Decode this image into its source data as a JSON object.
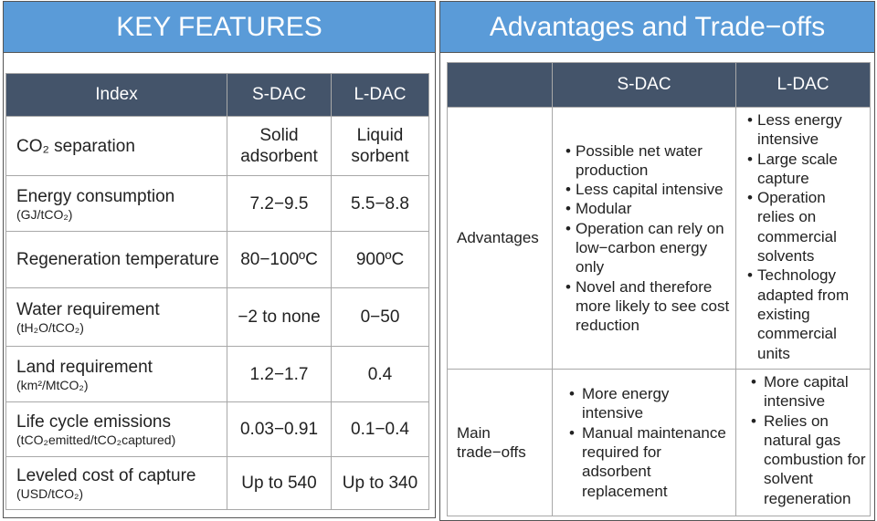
{
  "key_features": {
    "title": "KEY FEATURES",
    "headers": [
      "Index",
      "S-DAC",
      "L-DAC"
    ],
    "rows": [
      {
        "index": "CO₂ separation",
        "unit": "",
        "s": "Solid adsorbent",
        "l": "Liquid sorbent"
      },
      {
        "index": "Energy consumption",
        "unit": "(GJ/tCO₂)",
        "s": "7.2−9.5",
        "l": "5.5−8.8"
      },
      {
        "index": "Regeneration temperature",
        "unit": "",
        "s": "80−100ºC",
        "l": "900ºC"
      },
      {
        "index": "Water requirement",
        "unit": "(tH₂O/tCO₂)",
        "s": "−2 to none",
        "l": "0−50"
      },
      {
        "index": "Land requirement",
        "unit": "(km²/MtCO₂)",
        "s": "1.2−1.7",
        "l": "0.4"
      },
      {
        "index": "Life cycle emissions",
        "unit": "(tCO₂emitted/tCO₂captured)",
        "s": "0.03−0.91",
        "l": "0.1−0.4"
      },
      {
        "index": "Leveled cost of capture",
        "unit": "(USD/tCO₂)",
        "s": "Up to 540",
        "l": "Up to 340"
      }
    ]
  },
  "advantages": {
    "title": "Advantages and Trade−offs",
    "headers": [
      "",
      "S-DAC",
      "L-DAC"
    ],
    "rows": [
      {
        "label": "Advantages",
        "s": [
          "Possible net water production",
          "Less capital intensive",
          "Modular",
          "Operation can rely on low−carbon energy only",
          "Novel and therefore more likely to see cost reduction"
        ],
        "l": [
          "Less energy intensive",
          "Large scale capture",
          "Operation relies on commercial solvents",
          "Technology adapted from existing commercial units"
        ]
      },
      {
        "label": "Main trade−offs",
        "s": [
          "More energy intensive",
          "Manual maintenance required for adsorbent replacement"
        ],
        "l": [
          "More capital intensive",
          "Relies on natural gas combustion for solvent regeneration"
        ]
      }
    ]
  },
  "colors": {
    "title_bar": "#5a9bd8",
    "table_header": "#44546a"
  }
}
